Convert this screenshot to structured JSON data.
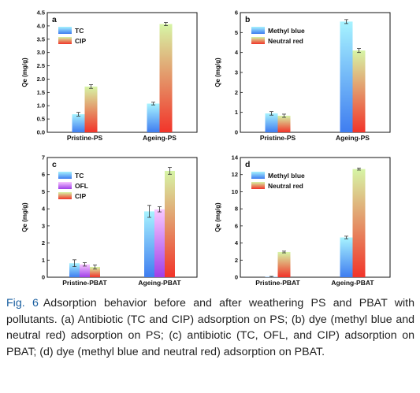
{
  "caption": {
    "label": "Fig. 6",
    "text": "Adsorption behavior before and after weathering PS and PBAT with pollutants. (a) Antibiotic (TC and CIP) adsorption on PS; (b) dye (methyl blue and neutral red) adsorption on PS; (c) antibiotic (TC, OFL, and CIP) adsorption on PBAT; (d) dye (methyl blue and neutral red) adsorption on PBAT."
  },
  "chart_data": [
    {
      "panel": "a",
      "type": "bar",
      "ylabel": "Qe (mg/g)",
      "ylim": [
        0,
        4.5
      ],
      "yticks": [
        "0.0",
        "0.5",
        "1.0",
        "1.5",
        "2.0",
        "2.5",
        "3.0",
        "3.5",
        "4.0",
        "4.5"
      ],
      "categories": [
        "Pristine-PS",
        "Ageing-PS"
      ],
      "legend": "top-left",
      "series": [
        {
          "name": "TC",
          "values": [
            0.68,
            1.08
          ],
          "errors": [
            0.07,
            0.05
          ],
          "color_top": "#a7f3ff",
          "color_bottom": "#3f7df0"
        },
        {
          "name": "CIP",
          "values": [
            1.72,
            4.07
          ],
          "errors": [
            0.07,
            0.06
          ],
          "color_top": "#d6f5a6",
          "color_bottom": "#f2342a"
        }
      ]
    },
    {
      "panel": "b",
      "type": "bar",
      "ylabel": "Qe (mg/g)",
      "ylim": [
        0,
        6
      ],
      "yticks": [
        "0",
        "1",
        "2",
        "3",
        "4",
        "5",
        "6"
      ],
      "categories": [
        "Pristine-PS",
        "Ageing-PS"
      ],
      "legend": "top-left",
      "series": [
        {
          "name": "Methyl blue",
          "values": [
            0.95,
            5.55
          ],
          "errors": [
            0.09,
            0.1
          ],
          "color_top": "#a7f3ff",
          "color_bottom": "#3f7df0"
        },
        {
          "name": "Neutral red",
          "values": [
            0.83,
            4.1
          ],
          "errors": [
            0.08,
            0.1
          ],
          "color_top": "#d6f5a6",
          "color_bottom": "#f2342a"
        }
      ]
    },
    {
      "panel": "c",
      "type": "bar",
      "ylabel": "Qe (mg/g)",
      "ylim": [
        0,
        7
      ],
      "yticks": [
        "0",
        "1",
        "2",
        "3",
        "4",
        "5",
        "6",
        "7"
      ],
      "categories": [
        "Pristine-PBAT",
        "Ageing-PBAT"
      ],
      "legend": "top-left",
      "series": [
        {
          "name": "TC",
          "values": [
            0.82,
            3.85
          ],
          "errors": [
            0.2,
            0.35
          ],
          "color_top": "#a7f3ff",
          "color_bottom": "#3f7df0"
        },
        {
          "name": "OFL",
          "values": [
            0.75,
            3.97
          ],
          "errors": [
            0.1,
            0.15
          ],
          "color_top": "#f8c8ff",
          "color_bottom": "#a03fe8"
        },
        {
          "name": "CIP",
          "values": [
            0.6,
            6.22
          ],
          "errors": [
            0.12,
            0.2
          ],
          "color_top": "#d6f5a6",
          "color_bottom": "#f2342a"
        }
      ]
    },
    {
      "panel": "d",
      "type": "bar",
      "ylabel": "Qe (mg/g)",
      "ylim": [
        0,
        14
      ],
      "yticks": [
        "0",
        "2",
        "4",
        "6",
        "8",
        "10",
        "12",
        "14"
      ],
      "categories": [
        "Pristine-PBAT",
        "Ageing-PBAT"
      ],
      "legend": "top-left",
      "series": [
        {
          "name": "Methyl blue",
          "values": [
            0.05,
            4.65
          ],
          "errors": [
            0.05,
            0.15
          ],
          "color_top": "#a7f3ff",
          "color_bottom": "#3f7df0"
        },
        {
          "name": "Neutral red",
          "values": [
            2.95,
            12.65
          ],
          "errors": [
            0.1,
            0.12
          ],
          "color_top": "#d6f5a6",
          "color_bottom": "#f2342a"
        }
      ]
    }
  ]
}
